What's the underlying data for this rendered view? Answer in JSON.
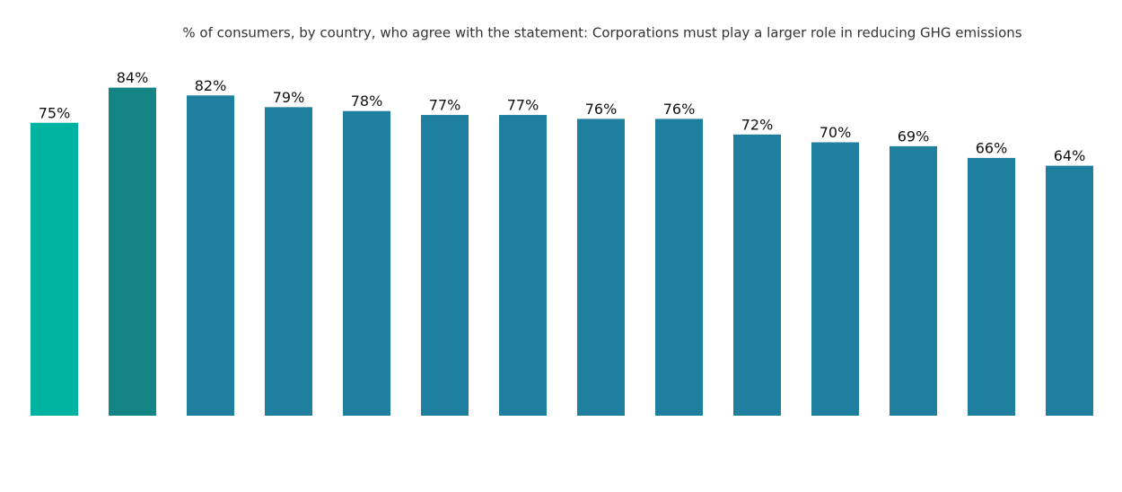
{
  "chart_data": {
    "type": "bar",
    "title": "% of consumers, by country, who agree with the statement: Corporations must play a larger role in reducing GHG emissions",
    "values": [
      75,
      84,
      82,
      79,
      78,
      77,
      77,
      76,
      76,
      72,
      70,
      69,
      66,
      64
    ],
    "value_labels": [
      "75%",
      "84%",
      "82%",
      "79%",
      "78%",
      "77%",
      "77%",
      "76%",
      "76%",
      "72%",
      "70%",
      "69%",
      "66%",
      "64%"
    ],
    "colors": [
      "#00b2a0",
      "#138585",
      "#1f7f9f",
      "#1f7f9f",
      "#1f7f9f",
      "#1f7f9f",
      "#1f7f9f",
      "#1f7f9f",
      "#1f7f9f",
      "#1f7f9f",
      "#1f7f9f",
      "#1f7f9f",
      "#1f7f9f",
      "#1f7f9f"
    ],
    "ylim": [
      0,
      100
    ]
  }
}
